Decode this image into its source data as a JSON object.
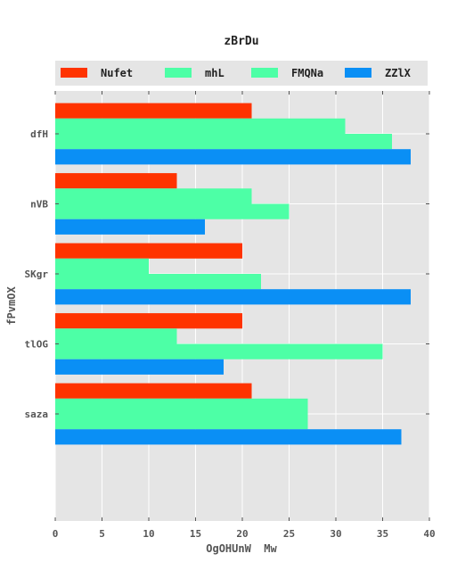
{
  "chart_data": {
    "type": "bar",
    "orientation": "horizontal",
    "title": "zBrDu",
    "xlabel": "OgOHUnW  Mw",
    "ylabel": "fPvmOX",
    "categories": [
      "dfH",
      "nVB",
      "SKgr",
      "tlOG",
      "saza"
    ],
    "series": [
      {
        "name": "Nufet",
        "color": "#ff3300",
        "values": [
          21,
          13,
          20,
          20,
          21
        ]
      },
      {
        "name": "mhL",
        "color": "#4dffa6",
        "values": [
          31,
          21,
          10,
          13,
          27
        ]
      },
      {
        "name": "FMQNa",
        "color": "#4dffa6",
        "values": [
          36,
          25,
          22,
          35,
          27
        ]
      },
      {
        "name": "ZZlX",
        "color": "#0a8ff5",
        "values": [
          38,
          16,
          38,
          18,
          37
        ]
      }
    ],
    "xlim": [
      0,
      40
    ],
    "xticks": [
      0,
      5,
      10,
      15,
      20,
      25,
      30,
      35,
      40
    ],
    "grid": true,
    "legend_position": "top"
  }
}
